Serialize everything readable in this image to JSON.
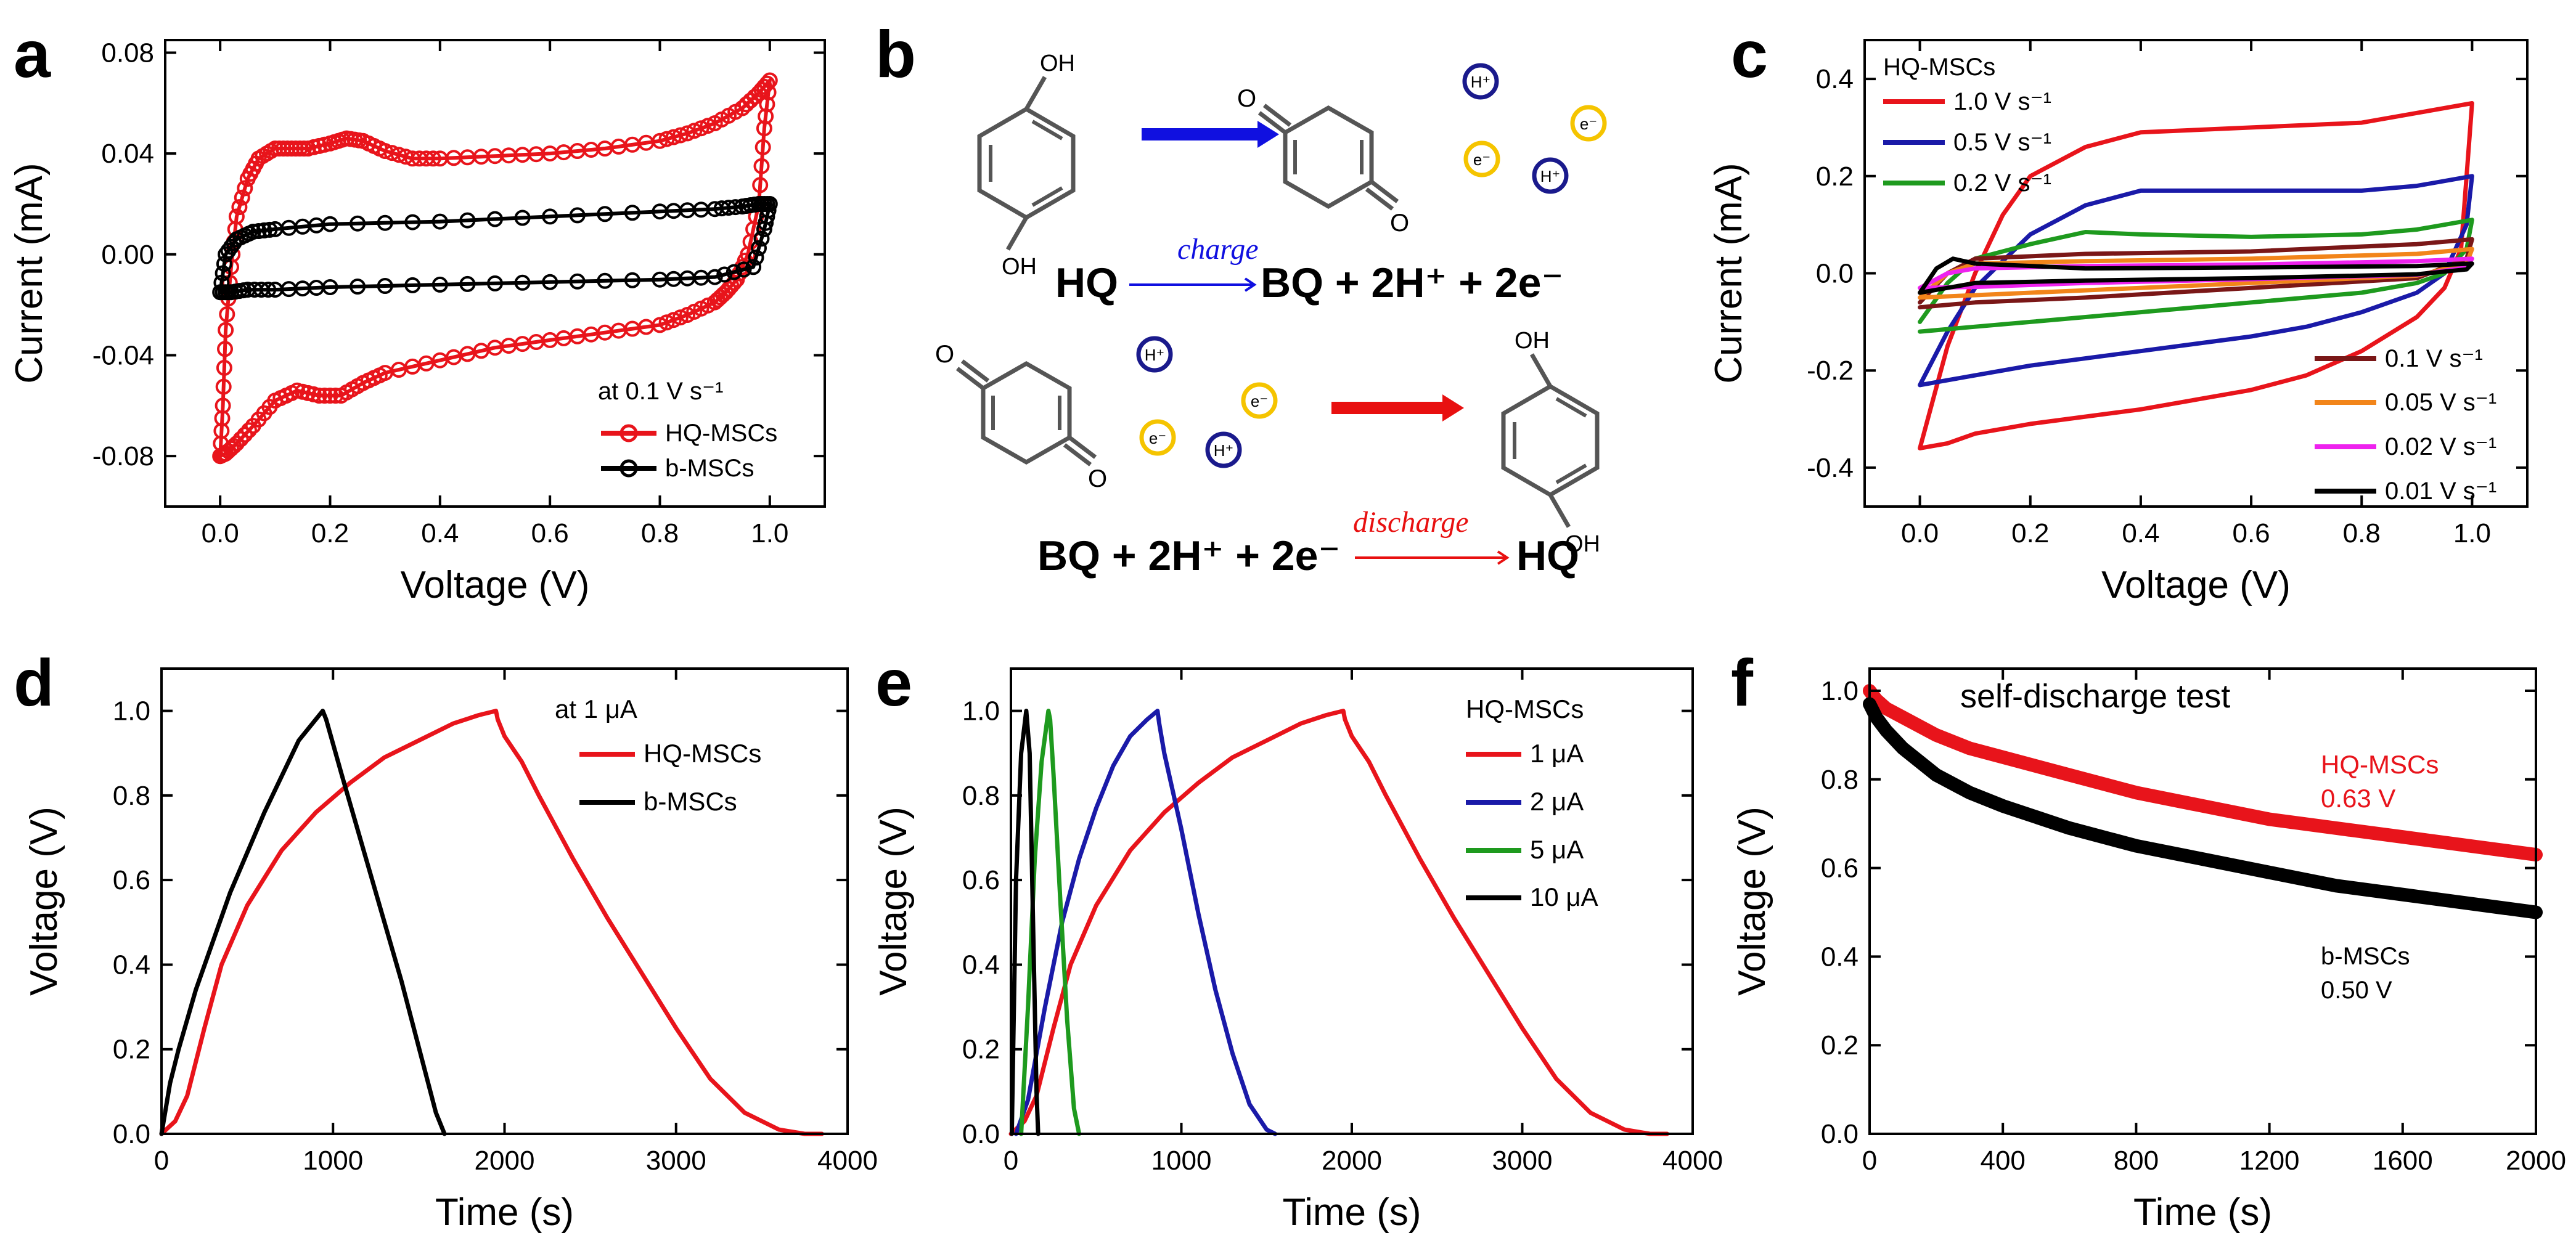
{
  "figure": {
    "panel_labels": [
      "a",
      "b",
      "c",
      "d",
      "e",
      "f"
    ]
  },
  "colors": {
    "red": "#e8141b",
    "black": "#000000",
    "blue": "#1a1aa8",
    "green": "#1e9a1e",
    "darkred": "#7a1717",
    "orange": "#f2851a",
    "magenta": "#ee22ee",
    "ion_yellow": "#f5c400",
    "ion_blue": "#1a1a8c",
    "arrow_blue": "#1010e0",
    "arrow_red": "#e81010",
    "ring": "#555555"
  },
  "scheme": {
    "hq_label": "HQ",
    "bq_label": "BQ",
    "charge_label": "charge",
    "discharge_label": "discharge",
    "charge_products": "BQ + 2H⁺ + 2e⁻",
    "discharge_reactants": "BQ + 2H⁺ + 2e⁻",
    "oh_label": "OH",
    "o_label": "O",
    "h_ion": "H⁺",
    "e_ion": "e⁻"
  },
  "chart_data": [
    {
      "id": "a",
      "type": "line",
      "xlabel": "Voltage (V)",
      "ylabel": "Current (mA)",
      "xlim": [
        -0.1,
        1.1
      ],
      "ylim": [
        -0.1,
        0.085
      ],
      "xticks": [
        0.0,
        0.2,
        0.4,
        0.6,
        0.8,
        1.0
      ],
      "xtick_labels": [
        "0.0",
        "0.2",
        "0.4",
        "0.6",
        "0.8",
        "1.0"
      ],
      "yticks": [
        -0.08,
        -0.04,
        0.0,
        0.04,
        0.08
      ],
      "ytick_labels": [
        "-0.08",
        "-0.04",
        "0.00",
        "0.04",
        "0.08"
      ],
      "legend_title": "at 0.1 V s⁻¹",
      "series": [
        {
          "name": "HQ-MSCs",
          "color": "red",
          "marker": "circle",
          "x": [
            0.0,
            0.005,
            0.01,
            0.02,
            0.03,
            0.05,
            0.07,
            0.1,
            0.13,
            0.16,
            0.2,
            0.23,
            0.26,
            0.3,
            0.35,
            0.4,
            0.5,
            0.6,
            0.7,
            0.8,
            0.85,
            0.9,
            0.95,
            0.98,
            1.0,
            0.99,
            0.98,
            0.96,
            0.94,
            0.92,
            0.9,
            0.85,
            0.8,
            0.7,
            0.6,
            0.5,
            0.4,
            0.3,
            0.26,
            0.22,
            0.18,
            0.14,
            0.1,
            0.06,
            0.03,
            0.01,
            0.0
          ],
          "y": [
            -0.08,
            -0.06,
            -0.03,
            -0.005,
            0.015,
            0.03,
            0.038,
            0.042,
            0.042,
            0.042,
            0.044,
            0.046,
            0.045,
            0.041,
            0.038,
            0.038,
            0.039,
            0.04,
            0.042,
            0.045,
            0.048,
            0.052,
            0.058,
            0.064,
            0.069,
            0.05,
            0.02,
            0.0,
            -0.01,
            -0.015,
            -0.019,
            -0.024,
            -0.028,
            -0.031,
            -0.034,
            -0.037,
            -0.042,
            -0.047,
            -0.051,
            -0.056,
            -0.056,
            -0.054,
            -0.058,
            -0.068,
            -0.075,
            -0.079,
            -0.08
          ]
        },
        {
          "name": "b-MSCs",
          "color": "black",
          "marker": "circle",
          "x": [
            0.0,
            0.01,
            0.03,
            0.06,
            0.1,
            0.2,
            0.4,
            0.6,
            0.8,
            0.9,
            0.95,
            0.98,
            1.0,
            0.99,
            0.97,
            0.9,
            0.8,
            0.6,
            0.4,
            0.2,
            0.1,
            0.05,
            0.02,
            0.0
          ],
          "y": [
            -0.015,
            0.0,
            0.006,
            0.009,
            0.01,
            0.012,
            0.013,
            0.015,
            0.017,
            0.018,
            0.019,
            0.02,
            0.02,
            0.01,
            -0.005,
            -0.009,
            -0.01,
            -0.011,
            -0.012,
            -0.013,
            -0.014,
            -0.014,
            -0.015,
            -0.015
          ]
        }
      ]
    },
    {
      "id": "c",
      "type": "line",
      "xlabel": "Voltage (V)",
      "ylabel": "Current (mA)",
      "xlim": [
        -0.1,
        1.1
      ],
      "ylim": [
        -0.48,
        0.48
      ],
      "xticks": [
        0.0,
        0.2,
        0.4,
        0.6,
        0.8,
        1.0
      ],
      "xtick_labels": [
        "0.0",
        "0.2",
        "0.4",
        "0.6",
        "0.8",
        "1.0"
      ],
      "yticks": [
        -0.4,
        -0.2,
        0.0,
        0.2,
        0.4
      ],
      "ytick_labels": [
        "-0.4",
        "-0.2",
        "0.0",
        "0.2",
        "0.4"
      ],
      "legend_title": "HQ-MSCs",
      "series": [
        {
          "name": "1.0 V s⁻¹",
          "color": "red",
          "x": [
            0.0,
            0.05,
            0.1,
            0.15,
            0.2,
            0.3,
            0.4,
            0.6,
            0.8,
            0.9,
            1.0,
            0.99,
            0.98,
            0.95,
            0.9,
            0.8,
            0.7,
            0.6,
            0.4,
            0.2,
            0.1,
            0.05,
            0.0
          ],
          "y": [
            -0.36,
            -0.15,
            0.0,
            0.12,
            0.2,
            0.26,
            0.29,
            0.3,
            0.31,
            0.33,
            0.35,
            0.2,
            0.05,
            -0.03,
            -0.09,
            -0.16,
            -0.21,
            -0.24,
            -0.28,
            -0.31,
            -0.33,
            -0.35,
            -0.36
          ]
        },
        {
          "name": "0.5 V s⁻¹",
          "color": "blue",
          "x": [
            0.0,
            0.05,
            0.1,
            0.2,
            0.3,
            0.4,
            0.6,
            0.8,
            0.9,
            1.0,
            0.99,
            0.95,
            0.9,
            0.8,
            0.7,
            0.6,
            0.4,
            0.2,
            0.1,
            0.0
          ],
          "y": [
            -0.23,
            -0.12,
            -0.03,
            0.08,
            0.14,
            0.17,
            0.17,
            0.17,
            0.18,
            0.2,
            0.1,
            0.0,
            -0.04,
            -0.08,
            -0.11,
            -0.13,
            -0.16,
            -0.19,
            -0.21,
            -0.23
          ]
        },
        {
          "name": "0.2 V s⁻¹",
          "color": "green",
          "x": [
            0.0,
            0.05,
            0.1,
            0.2,
            0.3,
            0.4,
            0.6,
            0.8,
            0.9,
            1.0,
            0.99,
            0.95,
            0.9,
            0.8,
            0.6,
            0.4,
            0.2,
            0.1,
            0.0
          ],
          "y": [
            -0.1,
            -0.02,
            0.03,
            0.06,
            0.085,
            0.08,
            0.075,
            0.08,
            0.09,
            0.11,
            0.05,
            0.0,
            -0.02,
            -0.04,
            -0.06,
            -0.08,
            -0.1,
            -0.11,
            -0.12
          ]
        },
        {
          "name": "0.1 V s⁻¹",
          "color": "darkred",
          "x": [
            0.0,
            0.05,
            0.1,
            0.3,
            0.6,
            0.9,
            1.0,
            0.99,
            0.9,
            0.6,
            0.3,
            0.1,
            0.0
          ],
          "y": [
            -0.06,
            0.0,
            0.03,
            0.04,
            0.045,
            0.06,
            0.07,
            0.03,
            -0.01,
            -0.03,
            -0.05,
            -0.06,
            -0.07
          ]
        },
        {
          "name": "0.05 V s⁻¹",
          "color": "orange",
          "x": [
            0.0,
            0.05,
            0.1,
            0.3,
            0.6,
            0.9,
            1.0,
            0.99,
            0.9,
            0.6,
            0.3,
            0.1,
            0.0
          ],
          "y": [
            -0.05,
            0.0,
            0.02,
            0.025,
            0.03,
            0.04,
            0.05,
            0.02,
            -0.005,
            -0.02,
            -0.035,
            -0.045,
            -0.05
          ]
        },
        {
          "name": "0.02 V s⁻¹",
          "color": "magenta",
          "x": [
            0.0,
            0.05,
            0.1,
            0.3,
            0.6,
            0.9,
            1.0,
            0.99,
            0.9,
            0.6,
            0.3,
            0.1,
            0.0
          ],
          "y": [
            -0.03,
            0.0,
            0.01,
            0.015,
            0.018,
            0.025,
            0.03,
            0.012,
            -0.003,
            -0.012,
            -0.02,
            -0.028,
            -0.03
          ]
        },
        {
          "name": "0.01 V s⁻¹",
          "color": "black",
          "x": [
            0.0,
            0.03,
            0.06,
            0.1,
            0.3,
            0.6,
            0.9,
            1.0,
            0.99,
            0.9,
            0.6,
            0.3,
            0.1,
            0.0
          ],
          "y": [
            -0.04,
            0.01,
            0.03,
            0.02,
            0.01,
            0.012,
            0.015,
            0.02,
            0.008,
            -0.002,
            -0.01,
            -0.015,
            -0.02,
            -0.04
          ]
        }
      ]
    },
    {
      "id": "d",
      "type": "line",
      "xlabel": "Time (s)",
      "ylabel": "Voltage (V)",
      "xlim": [
        0,
        4000
      ],
      "ylim": [
        0,
        1.1
      ],
      "xticks": [
        0,
        1000,
        2000,
        3000,
        4000
      ],
      "xtick_labels": [
        "0",
        "1000",
        "2000",
        "3000",
        "4000"
      ],
      "yticks": [
        0.0,
        0.2,
        0.4,
        0.6,
        0.8,
        1.0
      ],
      "ytick_labels": [
        "0.0",
        "0.2",
        "0.4",
        "0.6",
        "0.8",
        "1.0"
      ],
      "legend_title": "at 1 μA",
      "series": [
        {
          "name": "HQ-MSCs",
          "color": "red",
          "x": [
            0,
            80,
            150,
            250,
            350,
            500,
            700,
            900,
            1100,
            1300,
            1500,
            1700,
            1850,
            1950,
            1960,
            2000,
            2100,
            2200,
            2400,
            2600,
            2800,
            3000,
            3200,
            3400,
            3600,
            3750,
            3850
          ],
          "y": [
            0,
            0.03,
            0.09,
            0.25,
            0.4,
            0.54,
            0.67,
            0.76,
            0.83,
            0.89,
            0.93,
            0.97,
            0.99,
            1.0,
            0.98,
            0.94,
            0.88,
            0.8,
            0.65,
            0.51,
            0.38,
            0.25,
            0.13,
            0.05,
            0.01,
            0.0,
            0.0
          ]
        },
        {
          "name": "b-MSCs",
          "color": "black",
          "x": [
            0,
            50,
            100,
            200,
            400,
            600,
            800,
            940,
            960,
            1050,
            1200,
            1400,
            1600,
            1650
          ],
          "y": [
            0,
            0.12,
            0.2,
            0.34,
            0.57,
            0.76,
            0.93,
            1.0,
            0.98,
            0.85,
            0.64,
            0.36,
            0.05,
            0.0
          ]
        }
      ]
    },
    {
      "id": "e",
      "type": "line",
      "xlabel": "Time (s)",
      "ylabel": "Voltage (V)",
      "xlim": [
        0,
        4000
      ],
      "ylim": [
        0,
        1.1
      ],
      "xticks": [
        0,
        1000,
        2000,
        3000,
        4000
      ],
      "xtick_labels": [
        "0",
        "1000",
        "2000",
        "3000",
        "4000"
      ],
      "yticks": [
        0.0,
        0.2,
        0.4,
        0.6,
        0.8,
        1.0
      ],
      "ytick_labels": [
        "0.0",
        "0.2",
        "0.4",
        "0.6",
        "0.8",
        "1.0"
      ],
      "legend_title": "HQ-MSCs",
      "series": [
        {
          "name": "1 μA",
          "color": "red",
          "x": [
            0,
            80,
            150,
            250,
            350,
            500,
            700,
            900,
            1100,
            1300,
            1500,
            1700,
            1850,
            1950,
            1960,
            2000,
            2100,
            2200,
            2400,
            2600,
            2800,
            3000,
            3200,
            3400,
            3600,
            3750,
            3850
          ],
          "y": [
            0,
            0.03,
            0.09,
            0.25,
            0.4,
            0.54,
            0.67,
            0.76,
            0.83,
            0.89,
            0.93,
            0.97,
            0.99,
            1.0,
            0.98,
            0.94,
            0.88,
            0.8,
            0.65,
            0.51,
            0.38,
            0.25,
            0.13,
            0.05,
            0.01,
            0.0,
            0.0
          ]
        },
        {
          "name": "2 μA",
          "color": "blue",
          "x": [
            30,
            100,
            200,
            300,
            400,
            500,
            600,
            700,
            800,
            860,
            870,
            900,
            1000,
            1100,
            1200,
            1300,
            1400,
            1500,
            1550
          ],
          "y": [
            0,
            0.08,
            0.3,
            0.5,
            0.65,
            0.77,
            0.87,
            0.94,
            0.98,
            1.0,
            0.97,
            0.9,
            0.72,
            0.52,
            0.34,
            0.19,
            0.07,
            0.01,
            0.0
          ]
        },
        {
          "name": "5 μA",
          "color": "green",
          "x": [
            60,
            100,
            140,
            180,
            220,
            230,
            250,
            290,
            330,
            370,
            400
          ],
          "y": [
            0,
            0.3,
            0.65,
            0.88,
            1.0,
            0.98,
            0.85,
            0.55,
            0.27,
            0.06,
            0.0
          ]
        },
        {
          "name": "10 μA",
          "color": "black",
          "x": [
            5,
            30,
            60,
            90,
            110,
            130,
            150,
            160
          ],
          "y": [
            0,
            0.6,
            0.9,
            1.0,
            0.9,
            0.5,
            0.1,
            0.0
          ]
        }
      ]
    },
    {
      "id": "f",
      "type": "line",
      "title": "self-discharge test",
      "xlabel": "Time (s)",
      "ylabel": "Voltage (V)",
      "xlim": [
        0,
        2000
      ],
      "ylim": [
        0,
        1.05
      ],
      "xticks": [
        0,
        400,
        800,
        1200,
        1600,
        2000
      ],
      "xtick_labels": [
        "0",
        "400",
        "800",
        "1200",
        "1600",
        "2000"
      ],
      "yticks": [
        0.0,
        0.2,
        0.4,
        0.6,
        0.8,
        1.0
      ],
      "ytick_labels": [
        "0.0",
        "0.2",
        "0.4",
        "0.6",
        "0.8",
        "1.0"
      ],
      "series": [
        {
          "name": "HQ-MSCs",
          "annotation": "0.63 V",
          "color": "red",
          "x": [
            0,
            20,
            50,
            100,
            200,
            300,
            400,
            600,
            800,
            1000,
            1200,
            1400,
            1600,
            1800,
            2000
          ],
          "y": [
            1.0,
            0.98,
            0.96,
            0.94,
            0.9,
            0.87,
            0.85,
            0.81,
            0.77,
            0.74,
            0.71,
            0.69,
            0.67,
            0.65,
            0.63
          ]
        },
        {
          "name": "b-MSCs",
          "annotation": "0.50 V",
          "color": "black",
          "x": [
            0,
            20,
            50,
            100,
            200,
            300,
            400,
            600,
            800,
            1000,
            1200,
            1400,
            1600,
            1800,
            2000
          ],
          "y": [
            0.97,
            0.94,
            0.91,
            0.87,
            0.81,
            0.77,
            0.74,
            0.69,
            0.65,
            0.62,
            0.59,
            0.56,
            0.54,
            0.52,
            0.5
          ]
        }
      ]
    }
  ]
}
